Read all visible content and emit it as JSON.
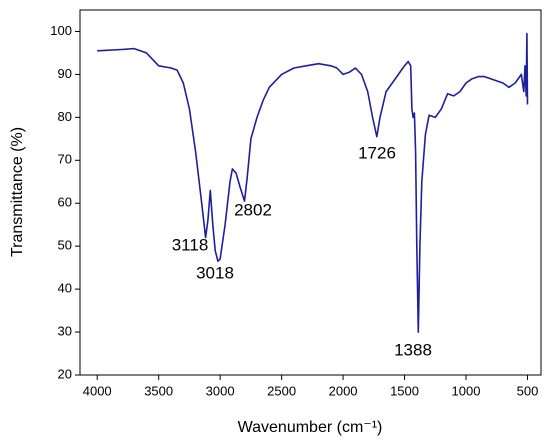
{
  "chart_data": {
    "type": "line",
    "xlabel": "Wavenumber (cm⁻¹)",
    "ylabel": "Transmittance (%)",
    "xlim": [
      4140,
      390
    ],
    "ylim": [
      20,
      105
    ],
    "xticks": [
      4000,
      3500,
      3000,
      2500,
      2000,
      1500,
      1000,
      500
    ],
    "yticks": [
      20,
      30,
      40,
      50,
      60,
      70,
      80,
      90,
      100
    ],
    "annotations": [
      "3118",
      "3018",
      "2802",
      "1726",
      "1388"
    ],
    "series": [
      {
        "color": "#1f1f9e",
        "x": [
          4000,
          3800,
          3700,
          3600,
          3500,
          3400,
          3350,
          3300,
          3250,
          3200,
          3150,
          3118,
          3100,
          3080,
          3060,
          3040,
          3018,
          3000,
          2960,
          2920,
          2900,
          2870,
          2840,
          2802,
          2780,
          2750,
          2700,
          2650,
          2600,
          2500,
          2400,
          2300,
          2200,
          2100,
          2050,
          2000,
          1950,
          1900,
          1850,
          1800,
          1760,
          1726,
          1700,
          1650,
          1600,
          1550,
          1500,
          1470,
          1450,
          1440,
          1430,
          1420,
          1410,
          1400,
          1388,
          1375,
          1360,
          1330,
          1300,
          1250,
          1200,
          1150,
          1100,
          1050,
          1000,
          950,
          900,
          850,
          800,
          700,
          650,
          600,
          550,
          530,
          520,
          510,
          505,
          500
        ],
        "values": [
          95.5,
          95.8,
          96,
          95,
          92,
          91.5,
          91,
          88,
          82,
          72,
          60,
          52,
          56,
          63,
          55,
          49,
          46.5,
          47,
          55,
          65,
          68,
          67,
          64,
          60.5,
          66,
          75,
          80,
          84,
          87,
          90,
          91.5,
          92,
          92.5,
          92,
          91.5,
          90,
          90.5,
          91.5,
          90,
          86,
          80,
          75.5,
          80,
          86,
          88,
          90,
          92,
          93,
          92,
          82,
          80,
          81,
          72,
          50,
          30,
          50,
          65,
          76,
          80.5,
          80,
          82,
          85.5,
          85,
          86,
          88,
          89,
          89.5,
          89.5,
          89,
          88,
          87,
          88,
          90,
          86,
          92,
          85,
          99.5,
          83
        ]
      }
    ]
  }
}
